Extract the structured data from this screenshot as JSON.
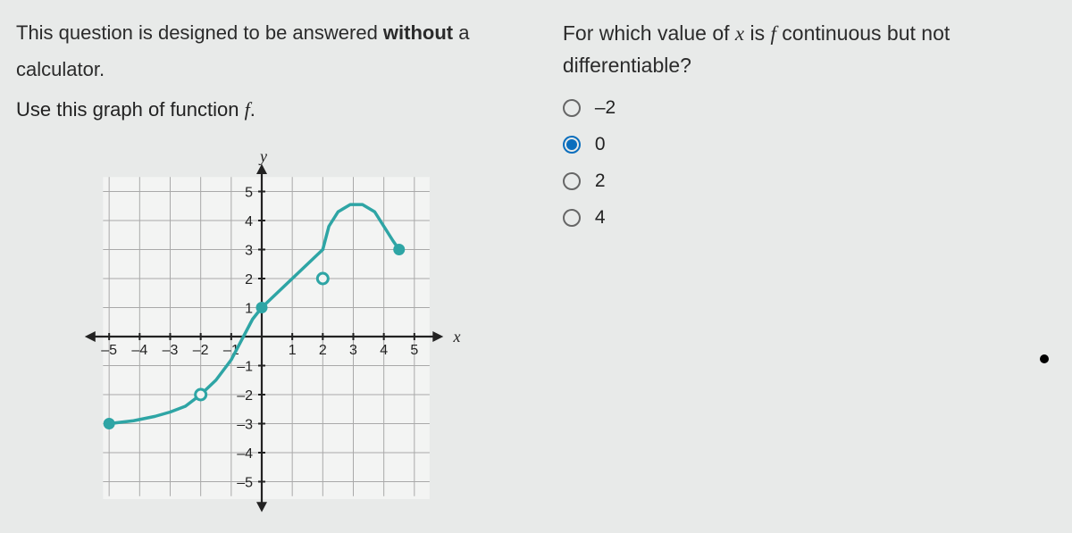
{
  "left": {
    "instruction_part1": "This question is designed to be answered ",
    "instruction_bold": "without",
    "instruction_part2": " a",
    "instruction_line2": "calculator.",
    "use_graph_part1": "Use this graph of function ",
    "use_graph_italic": "f",
    "use_graph_part2": "."
  },
  "question": {
    "line1_part1": "For which value of ",
    "line1_x": "x",
    "line1_part2": " is ",
    "line1_f": "f",
    "line1_part3": " continuous but not",
    "line2": "differentiable?"
  },
  "options": [
    {
      "label": "–2",
      "selected": false
    },
    {
      "label": "0",
      "selected": true
    },
    {
      "label": "2",
      "selected": false
    },
    {
      "label": "4",
      "selected": false
    }
  ],
  "chart": {
    "x_axis_label": "x",
    "y_axis_label": "y",
    "x_ticks": [
      -5,
      -4,
      -3,
      -2,
      -1,
      1,
      2,
      3,
      4,
      5
    ],
    "y_ticks": [
      -5,
      -4,
      -3,
      -2,
      -1,
      1,
      2,
      3,
      4,
      5
    ],
    "xlim": [
      -6,
      6
    ],
    "ylim": [
      -6,
      6
    ],
    "grid_color": "#a9a9a9",
    "axis_color": "#222222",
    "line_color": "#2ea5a5",
    "line_width": 3.5,
    "label_fontsize": 18,
    "tick_fontsize": 16,
    "background_color": "#f3f4f3",
    "segments": {
      "left_curve": [
        [
          -5,
          -3
        ],
        [
          -4.2,
          -2.9
        ],
        [
          -3.5,
          -2.75
        ],
        [
          -3,
          -2.6
        ],
        [
          -2.5,
          -2.4
        ],
        [
          -2,
          -2
        ],
        [
          -1.5,
          -1.5
        ],
        [
          -1,
          -0.8
        ],
        [
          -0.6,
          0
        ],
        [
          -0.3,
          0.6
        ],
        [
          0,
          1
        ]
      ],
      "middle_line": [
        [
          0,
          1
        ],
        [
          2,
          3
        ]
      ],
      "right_arc": [
        [
          2,
          3
        ],
        [
          2.2,
          3.8
        ],
        [
          2.5,
          4.3
        ],
        [
          2.9,
          4.55
        ],
        [
          3.3,
          4.55
        ],
        [
          3.7,
          4.3
        ],
        [
          4,
          3.8
        ],
        [
          4.3,
          3.3
        ],
        [
          4.5,
          3
        ]
      ]
    },
    "closed_points": [
      [
        -5,
        -3
      ],
      [
        0,
        1
      ],
      [
        4.5,
        3
      ]
    ],
    "open_points": [
      [
        -2,
        -2
      ],
      [
        2,
        2
      ]
    ]
  }
}
